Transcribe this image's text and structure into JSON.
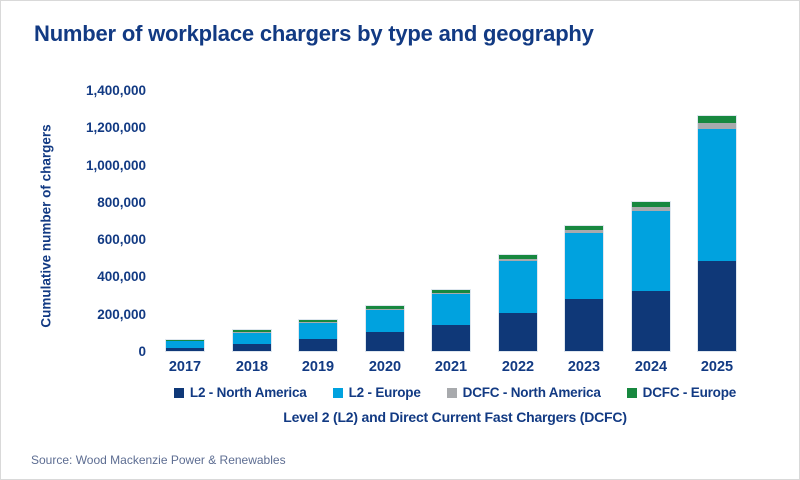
{
  "title": "Number of workplace chargers by type and geography",
  "source": "Source: Wood Mackenzie Power & Renewables",
  "colors": {
    "text_navy": "#123a83",
    "l2_north_america": "#0f3878",
    "l2_europe": "#00a2df",
    "dcfc_north_america": "#a8aaad",
    "dcfc_europe": "#17883f",
    "source_text": "#5d6d92",
    "bar_outline": "#dfe7ef"
  },
  "chart_data": {
    "type": "bar",
    "stacked": true,
    "title": "Number of workplace chargers by type and geography",
    "categories": [
      "2017",
      "2018",
      "2019",
      "2020",
      "2021",
      "2022",
      "2023",
      "2024",
      "2025"
    ],
    "series": [
      {
        "name": "L2 - North America",
        "color": "#0f3878",
        "values": [
          15000,
          35000,
          62000,
          100000,
          138000,
          205000,
          280000,
          323000,
          485000
        ]
      },
      {
        "name": "L2 - Europe",
        "color": "#00a2df",
        "values": [
          40000,
          60000,
          86000,
          120000,
          164000,
          278000,
          352000,
          427000,
          710000
        ]
      },
      {
        "name": "DCFC - North America",
        "color": "#a8aaad",
        "values": [
          2000,
          3000,
          4000,
          6000,
          7000,
          13000,
          16000,
          22000,
          30000
        ]
      },
      {
        "name": "DCFC - Europe",
        "color": "#17883f",
        "values": [
          8000,
          10000,
          10000,
          14000,
          16000,
          22000,
          24000,
          28000,
          40000
        ]
      }
    ],
    "xlabel": "Level 2 (L2) and Direct Current Fast Chargers (DCFC)",
    "ylabel": "Cumulative number of chargers",
    "ylim": [
      0,
      1400000
    ],
    "ytick_step": 200000,
    "ytick_labels": [
      "0",
      "200,000",
      "400,000",
      "600,000",
      "800,000",
      "1,000,000",
      "1,200,000",
      "1,400,000"
    ],
    "grid": false,
    "axis_lines": false,
    "legend_position": "bottom"
  }
}
